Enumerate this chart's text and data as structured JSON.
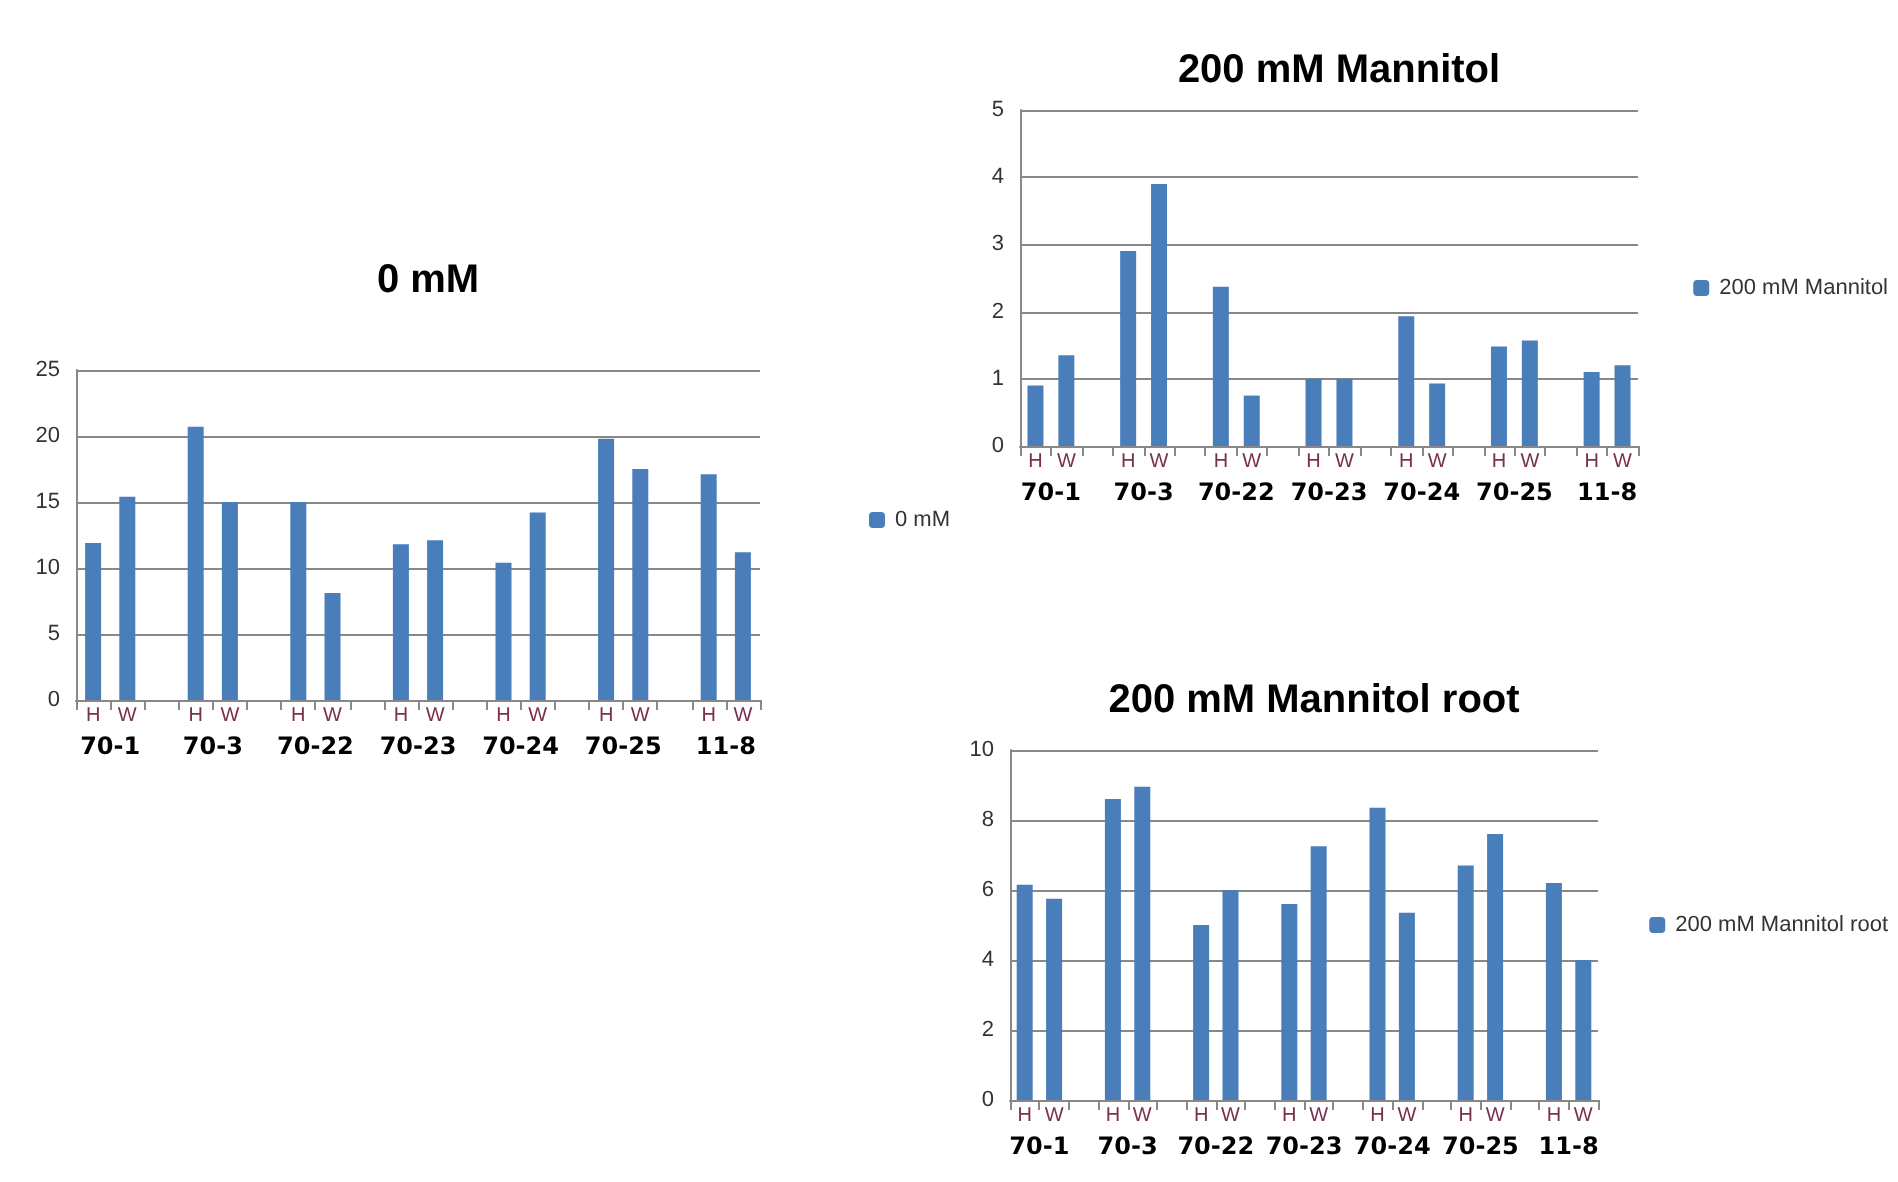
{
  "chart_data": [
    {
      "type": "bar",
      "title": "0 mM",
      "categories": [
        "H",
        "W",
        null,
        "H",
        "W",
        null,
        "H",
        "W",
        null,
        "H",
        "W",
        null,
        "H",
        "W",
        null,
        "H",
        "W",
        null,
        "H",
        "W"
      ],
      "series": [
        {
          "name": "0 mM",
          "color": "#4a7ebb",
          "values": [
            11.9,
            15.4,
            null,
            20.7,
            15.0,
            null,
            15.0,
            8.1,
            null,
            11.8,
            12.1,
            null,
            10.4,
            14.2,
            null,
            19.8,
            17.5,
            null,
            17.1,
            11.2
          ]
        }
      ],
      "annotations": [
        "70-1",
        "70-3",
        "70-22",
        "70-23",
        "70-24",
        "70-25",
        "11-8"
      ],
      "ylim": [
        0,
        25
      ],
      "yticks": [
        0,
        5,
        10,
        15,
        20,
        25
      ],
      "grid": "y",
      "legend": "right"
    },
    {
      "type": "bar",
      "title": "200 mM Mannitol",
      "categories": [
        "H",
        "W",
        null,
        "H",
        "W",
        null,
        "H",
        "W",
        null,
        "H",
        "W",
        null,
        "H",
        "W",
        null,
        "H",
        "W",
        null,
        "H",
        "W"
      ],
      "series": [
        {
          "name": "200 mM Mannitol",
          "color": "#4a7ebb",
          "values": [
            0.9,
            1.35,
            null,
            2.9,
            3.9,
            null,
            2.37,
            0.75,
            null,
            1.0,
            1.0,
            null,
            1.93,
            0.93,
            null,
            1.48,
            1.57,
            null,
            1.1,
            1.2
          ]
        }
      ],
      "annotations": [
        "70-1",
        "70-3",
        "70-22",
        "70-23",
        "70-24",
        "70-25",
        "11-8"
      ],
      "ylim": [
        0,
        5
      ],
      "yticks": [
        0,
        1,
        2,
        3,
        4,
        5
      ],
      "grid": "y",
      "legend": "right"
    },
    {
      "type": "bar",
      "title": "200 mM Mannitol root",
      "categories": [
        "H",
        "W",
        null,
        "H",
        "W",
        null,
        "H",
        "W",
        null,
        "H",
        "W",
        null,
        "H",
        "W",
        null,
        "H",
        "W",
        null,
        "H",
        "W"
      ],
      "series": [
        {
          "name": "200 mM Mannitol root",
          "color": "#4a7ebb",
          "values": [
            6.15,
            5.75,
            null,
            8.6,
            8.95,
            null,
            5.0,
            6.0,
            null,
            5.6,
            7.25,
            null,
            8.35,
            5.35,
            null,
            6.7,
            7.6,
            null,
            6.2,
            4.0
          ]
        }
      ],
      "annotations": [
        "70-1",
        "70-3",
        "70-22",
        "70-23",
        "70-24",
        "70-25",
        "11-8"
      ],
      "ylim": [
        0,
        10
      ],
      "yticks": [
        0,
        2,
        4,
        6,
        8,
        10
      ],
      "grid": "y",
      "legend": "right"
    }
  ]
}
